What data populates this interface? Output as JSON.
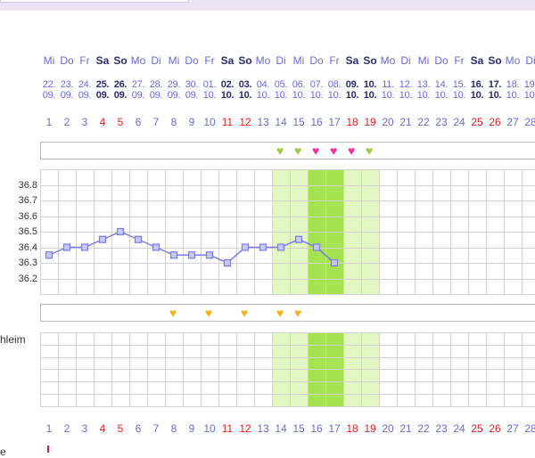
{
  "weekdays": [
    "Mi",
    "Do",
    "Fr",
    "Sa",
    "So",
    "Mo",
    "Di",
    "Mi",
    "Do",
    "Fr",
    "Sa",
    "So",
    "Mo",
    "Di",
    "Mi",
    "Do",
    "Fr",
    "Sa",
    "So",
    "Mo",
    "Di",
    "Mi",
    "Do",
    "Fr",
    "Sa",
    "So",
    "Mo",
    "Di"
  ],
  "weekday_bold": [
    false,
    false,
    false,
    true,
    true,
    false,
    false,
    false,
    false,
    false,
    true,
    true,
    false,
    false,
    false,
    false,
    false,
    true,
    true,
    false,
    false,
    false,
    false,
    false,
    true,
    true,
    false,
    false
  ],
  "dates_day": [
    "22.",
    "23.",
    "24.",
    "25.",
    "26.",
    "27.",
    "28.",
    "29.",
    "30.",
    "01.",
    "02.",
    "03.",
    "04.",
    "05.",
    "06.",
    "07.",
    "08.",
    "09.",
    "10.",
    "11.",
    "12.",
    "13.",
    "14.",
    "15.",
    "16.",
    "17.",
    "18.",
    "19."
  ],
  "dates_month": [
    "09.",
    "09.",
    "09.",
    "09.",
    "09.",
    "09.",
    "09.",
    "09.",
    "09.",
    "10.",
    "10.",
    "10.",
    "10.",
    "10.",
    "10.",
    "10.",
    "10.",
    "10.",
    "10.",
    "10.",
    "10.",
    "10.",
    "10.",
    "10.",
    "10.",
    "10.",
    "10.",
    "10."
  ],
  "cycle_days": [
    "1",
    "2",
    "3",
    "4",
    "5",
    "6",
    "7",
    "8",
    "9",
    "10",
    "11",
    "12",
    "13",
    "14",
    "15",
    "16",
    "17",
    "18",
    "19",
    "20",
    "21",
    "22",
    "23",
    "24",
    "25",
    "26",
    "27",
    "28"
  ],
  "red_days": [
    4,
    5,
    11,
    12,
    18,
    19,
    25,
    26
  ],
  "temp_axis_labels": [
    "36.8",
    "36.7",
    "36.6",
    "36.5",
    "36.4",
    "36.3",
    "36.2"
  ],
  "chart_data": {
    "type": "line",
    "x": [
      1,
      2,
      3,
      4,
      5,
      6,
      7,
      8,
      9,
      10,
      11,
      12,
      13,
      14,
      15,
      16,
      17
    ],
    "values": [
      36.35,
      36.4,
      36.4,
      36.45,
      36.5,
      36.45,
      36.4,
      36.35,
      36.35,
      36.35,
      36.3,
      36.4,
      36.4,
      36.4,
      36.45,
      36.4,
      36.3
    ],
    "ylim": [
      36.1,
      36.9
    ],
    "light_highlight_days": [
      14,
      15,
      18,
      19
    ],
    "dark_highlight_days": [
      16,
      17
    ],
    "grid": true,
    "line_color": "#7b7be6"
  },
  "top_hearts": [
    {
      "day": 14,
      "color": "green"
    },
    {
      "day": 15,
      "color": "green"
    },
    {
      "day": 16,
      "color": "pink"
    },
    {
      "day": 17,
      "color": "pink"
    },
    {
      "day": 18,
      "color": "pink"
    },
    {
      "day": 19,
      "color": "green"
    }
  ],
  "bottom_hearts": [
    {
      "day": 8,
      "color": "yellow"
    },
    {
      "day": 10,
      "color": "yellow"
    },
    {
      "day": 12,
      "color": "yellow"
    },
    {
      "day": 14,
      "color": "yellow"
    },
    {
      "day": 15,
      "color": "yellow"
    }
  ],
  "side_label": "hleim",
  "side_label2": "e",
  "heart_glyph": "♥",
  "colors": {
    "light_green": "#e2f7c4",
    "mid_green": "#c9f09a",
    "dark_green": "#a6e24f",
    "grid": "#d2d2d2"
  }
}
